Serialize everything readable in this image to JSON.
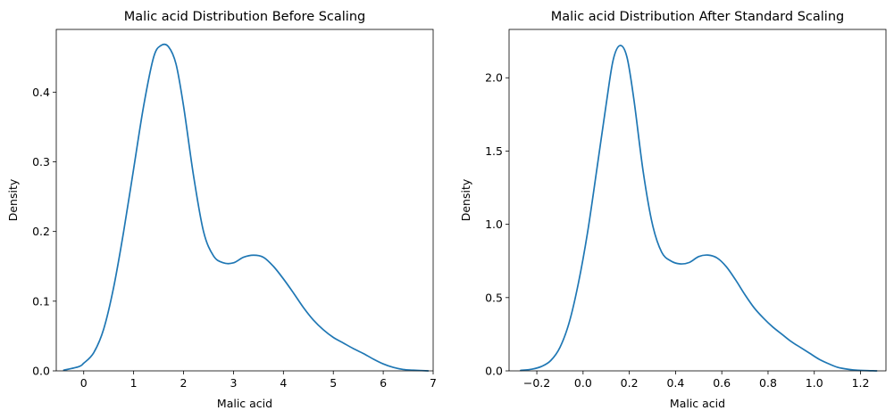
{
  "chart_data": [
    {
      "type": "line",
      "title": "Malic acid Distribution Before Scaling",
      "xlabel": "Malic acid",
      "ylabel": "Density",
      "xlim": [
        -0.55,
        7.0
      ],
      "ylim": [
        0,
        0.49
      ],
      "xticks": [
        0,
        1,
        2,
        3,
        4,
        5,
        6,
        7
      ],
      "xtick_labels": [
        "0",
        "1",
        "2",
        "3",
        "4",
        "5",
        "6",
        "7"
      ],
      "yticks": [
        0.0,
        0.1,
        0.2,
        0.3,
        0.4
      ],
      "ytick_labels": [
        "0.0",
        "0.1",
        "0.2",
        "0.3",
        "0.4"
      ],
      "grid": false,
      "series": [
        {
          "color": "#1f77b4",
          "x": [
            -0.4,
            -0.1,
            0.0,
            0.2,
            0.4,
            0.6,
            0.8,
            1.0,
            1.2,
            1.4,
            1.55,
            1.7,
            1.85,
            2.0,
            2.2,
            2.4,
            2.6,
            2.8,
            3.0,
            3.2,
            3.4,
            3.6,
            3.8,
            4.0,
            4.2,
            4.4,
            4.6,
            4.8,
            5.0,
            5.2,
            5.4,
            5.6,
            5.8,
            6.0,
            6.2,
            6.4,
            6.6,
            6.9
          ],
          "y": [
            0.001,
            0.006,
            0.011,
            0.026,
            0.06,
            0.12,
            0.2,
            0.29,
            0.38,
            0.45,
            0.467,
            0.465,
            0.44,
            0.38,
            0.28,
            0.2,
            0.165,
            0.155,
            0.155,
            0.163,
            0.166,
            0.163,
            0.15,
            0.132,
            0.112,
            0.091,
            0.073,
            0.059,
            0.048,
            0.04,
            0.032,
            0.025,
            0.017,
            0.01,
            0.005,
            0.002,
            0.001,
            0.0
          ]
        }
      ]
    },
    {
      "type": "line",
      "title": "Malic acid Distribution After Standard Scaling",
      "xlabel": "Malic acid",
      "ylabel": "Density",
      "xlim": [
        -0.32,
        1.31
      ],
      "ylim": [
        0,
        2.33
      ],
      "xticks": [
        -0.2,
        0.0,
        0.2,
        0.4,
        0.6,
        0.8,
        1.0,
        1.2
      ],
      "xtick_labels": [
        "−0.2",
        "0.0",
        "0.2",
        "0.4",
        "0.6",
        "0.8",
        "1.0",
        "1.2"
      ],
      "yticks": [
        0.0,
        0.5,
        1.0,
        1.5,
        2.0
      ],
      "ytick_labels": [
        "0.0",
        "0.5",
        "1.0",
        "1.5",
        "2.0"
      ],
      "grid": false,
      "series": [
        {
          "color": "#1f77b4",
          "x": [
            -0.27,
            -0.22,
            -0.18,
            -0.14,
            -0.1,
            -0.06,
            -0.02,
            0.02,
            0.06,
            0.1,
            0.13,
            0.16,
            0.19,
            0.22,
            0.26,
            0.3,
            0.34,
            0.38,
            0.42,
            0.46,
            0.5,
            0.54,
            0.58,
            0.62,
            0.66,
            0.7,
            0.74,
            0.78,
            0.82,
            0.86,
            0.9,
            0.94,
            0.98,
            1.02,
            1.06,
            1.1,
            1.15,
            1.19,
            1.27
          ],
          "y": [
            0.003,
            0.012,
            0.03,
            0.07,
            0.16,
            0.33,
            0.6,
            0.95,
            1.38,
            1.82,
            2.12,
            2.22,
            2.14,
            1.85,
            1.36,
            1.0,
            0.81,
            0.75,
            0.73,
            0.74,
            0.78,
            0.79,
            0.77,
            0.71,
            0.62,
            0.52,
            0.43,
            0.36,
            0.3,
            0.25,
            0.2,
            0.16,
            0.12,
            0.08,
            0.05,
            0.025,
            0.01,
            0.004,
            0.0
          ]
        }
      ]
    }
  ]
}
